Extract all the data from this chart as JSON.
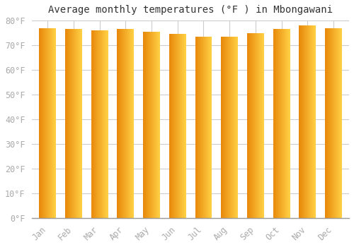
{
  "title": "Average monthly temperatures (°F ) in Mbongawani",
  "months": [
    "Jan",
    "Feb",
    "Mar",
    "Apr",
    "May",
    "Jun",
    "Jul",
    "Aug",
    "Sep",
    "Oct",
    "Nov",
    "Dec"
  ],
  "values": [
    77,
    76.5,
    76,
    76.5,
    75.5,
    74.5,
    73.5,
    73.5,
    75,
    76.5,
    78,
    77
  ],
  "bar_color_left": "#E8880A",
  "bar_color_right": "#FFD045",
  "background_color": "#FFFFFF",
  "grid_color": "#CCCCCC",
  "ylim": [
    0,
    80
  ],
  "yticks": [
    0,
    10,
    20,
    30,
    40,
    50,
    60,
    70,
    80
  ],
  "ytick_labels": [
    "0°F",
    "10°F",
    "20°F",
    "30°F",
    "40°F",
    "50°F",
    "60°F",
    "70°F",
    "80°F"
  ],
  "tick_color": "#AAAAAA",
  "title_fontsize": 10,
  "tick_fontsize": 8.5,
  "bar_width": 0.65
}
